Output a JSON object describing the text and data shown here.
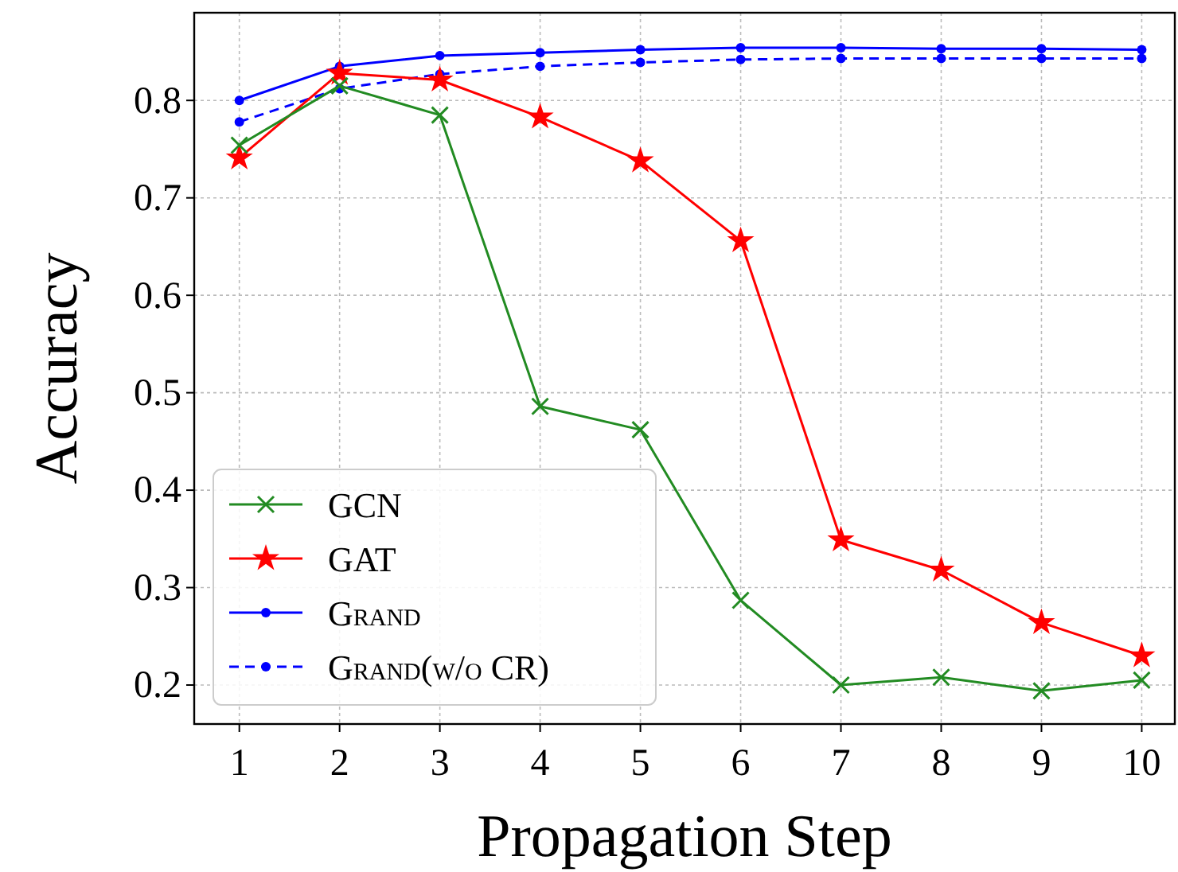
{
  "chart_data": {
    "type": "line",
    "xlabel": "Propagation Step",
    "ylabel": "Accuracy",
    "x": [
      1,
      2,
      3,
      4,
      5,
      6,
      7,
      8,
      9,
      10
    ],
    "xlim": [
      0.55,
      10.33
    ],
    "xticks": [
      1,
      2,
      3,
      4,
      5,
      6,
      7,
      8,
      9,
      10
    ],
    "ylim": [
      0.16,
      0.89
    ],
    "yticks": [
      0.2,
      0.3,
      0.4,
      0.5,
      0.6,
      0.7,
      0.8
    ],
    "grid": true,
    "legend": "bottom left",
    "series": [
      {
        "name": "GCN",
        "color": "#228b22",
        "marker": "cross",
        "line_style": "solid",
        "values": [
          0.754,
          0.815,
          0.785,
          0.486,
          0.462,
          0.287,
          0.2,
          0.208,
          0.194,
          0.205
        ]
      },
      {
        "name": "GAT",
        "color": "#ff0000",
        "marker": "star",
        "line_style": "solid",
        "values": [
          0.741,
          0.828,
          0.821,
          0.783,
          0.738,
          0.656,
          0.349,
          0.318,
          0.264,
          0.23
        ]
      },
      {
        "name": "Grand",
        "color": "#0000ff",
        "marker": "circle",
        "line_style": "solid",
        "values": [
          0.8,
          0.835,
          0.846,
          0.849,
          0.852,
          0.854,
          0.854,
          0.853,
          0.853,
          0.852
        ]
      },
      {
        "name": "Grand(w/o CR)",
        "color": "#0000ff",
        "marker": "circle",
        "line_style": "dashed",
        "values": [
          0.778,
          0.812,
          0.827,
          0.835,
          0.839,
          0.842,
          0.843,
          0.843,
          0.843,
          0.843
        ]
      }
    ]
  }
}
